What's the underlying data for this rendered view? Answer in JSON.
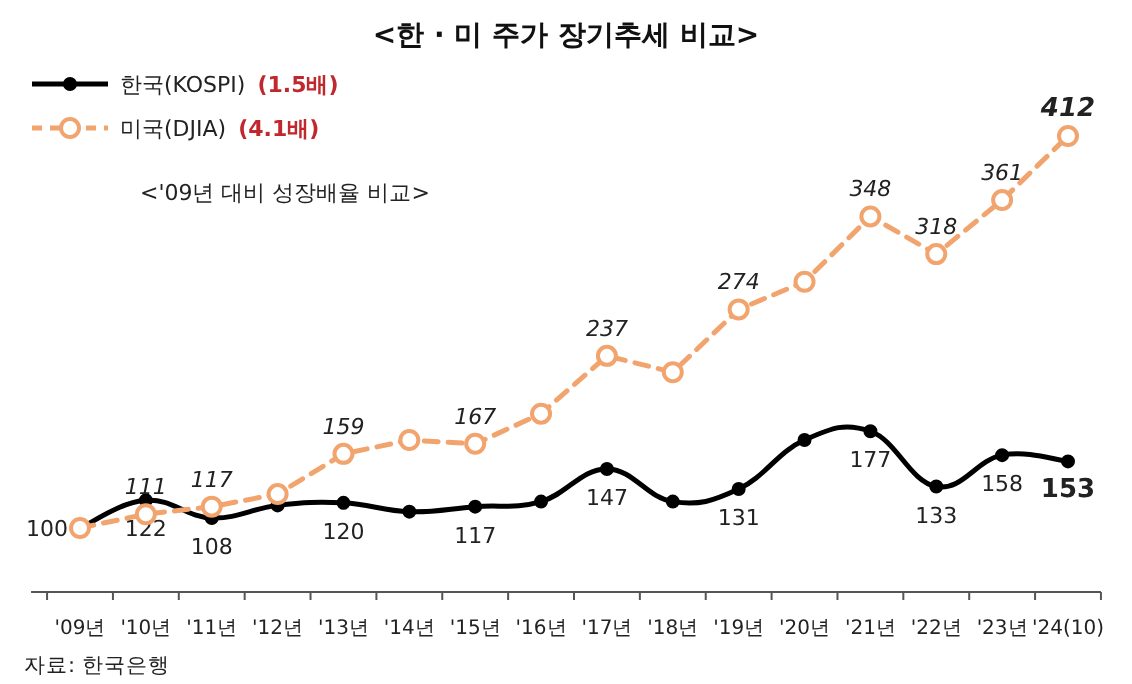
{
  "chart_data": {
    "type": "line",
    "title": "<한 · 미 주가 장기추세 비교>",
    "subtitle": "<'09년 대비 성장배율 비교>",
    "categories": [
      "'09년",
      "'10년",
      "'11년",
      "'12년",
      "'13년",
      "'14년",
      "'15년",
      "'16년",
      "'17년",
      "'18년",
      "'19년",
      "'20년",
      "'21년",
      "'22년",
      "'23년",
      "'24(10)"
    ],
    "series": [
      {
        "name": "한국(KOSPI)",
        "color": "#000000",
        "marker": "circle",
        "line_style": "solid",
        "values": [
          100,
          122,
          108,
          118,
          120,
          113,
          117,
          121,
          147,
          121,
          131,
          170,
          177,
          133,
          158,
          153
        ],
        "value_labels": [
          "100",
          "122",
          "108",
          null,
          "120",
          null,
          "117",
          null,
          "147",
          null,
          "131",
          null,
          "177",
          "133",
          "158",
          "153"
        ]
      },
      {
        "name": "미국(DJIA)",
        "color": "#f2a46e",
        "marker": "circle",
        "line_style": "dashed",
        "values": [
          100,
          111,
          117,
          127,
          159,
          170,
          167,
          191,
          237,
          224,
          274,
          296,
          348,
          318,
          361,
          412
        ],
        "value_labels": [
          null,
          "111",
          "117",
          null,
          "159",
          null,
          "167",
          null,
          "237",
          null,
          "274",
          null,
          "348",
          "318",
          "361",
          "412"
        ]
      }
    ],
    "legend": "top left",
    "annotations": [
      "(1.5배)",
      "(4.1배)",
      "자료: 한국은행"
    ]
  }
}
